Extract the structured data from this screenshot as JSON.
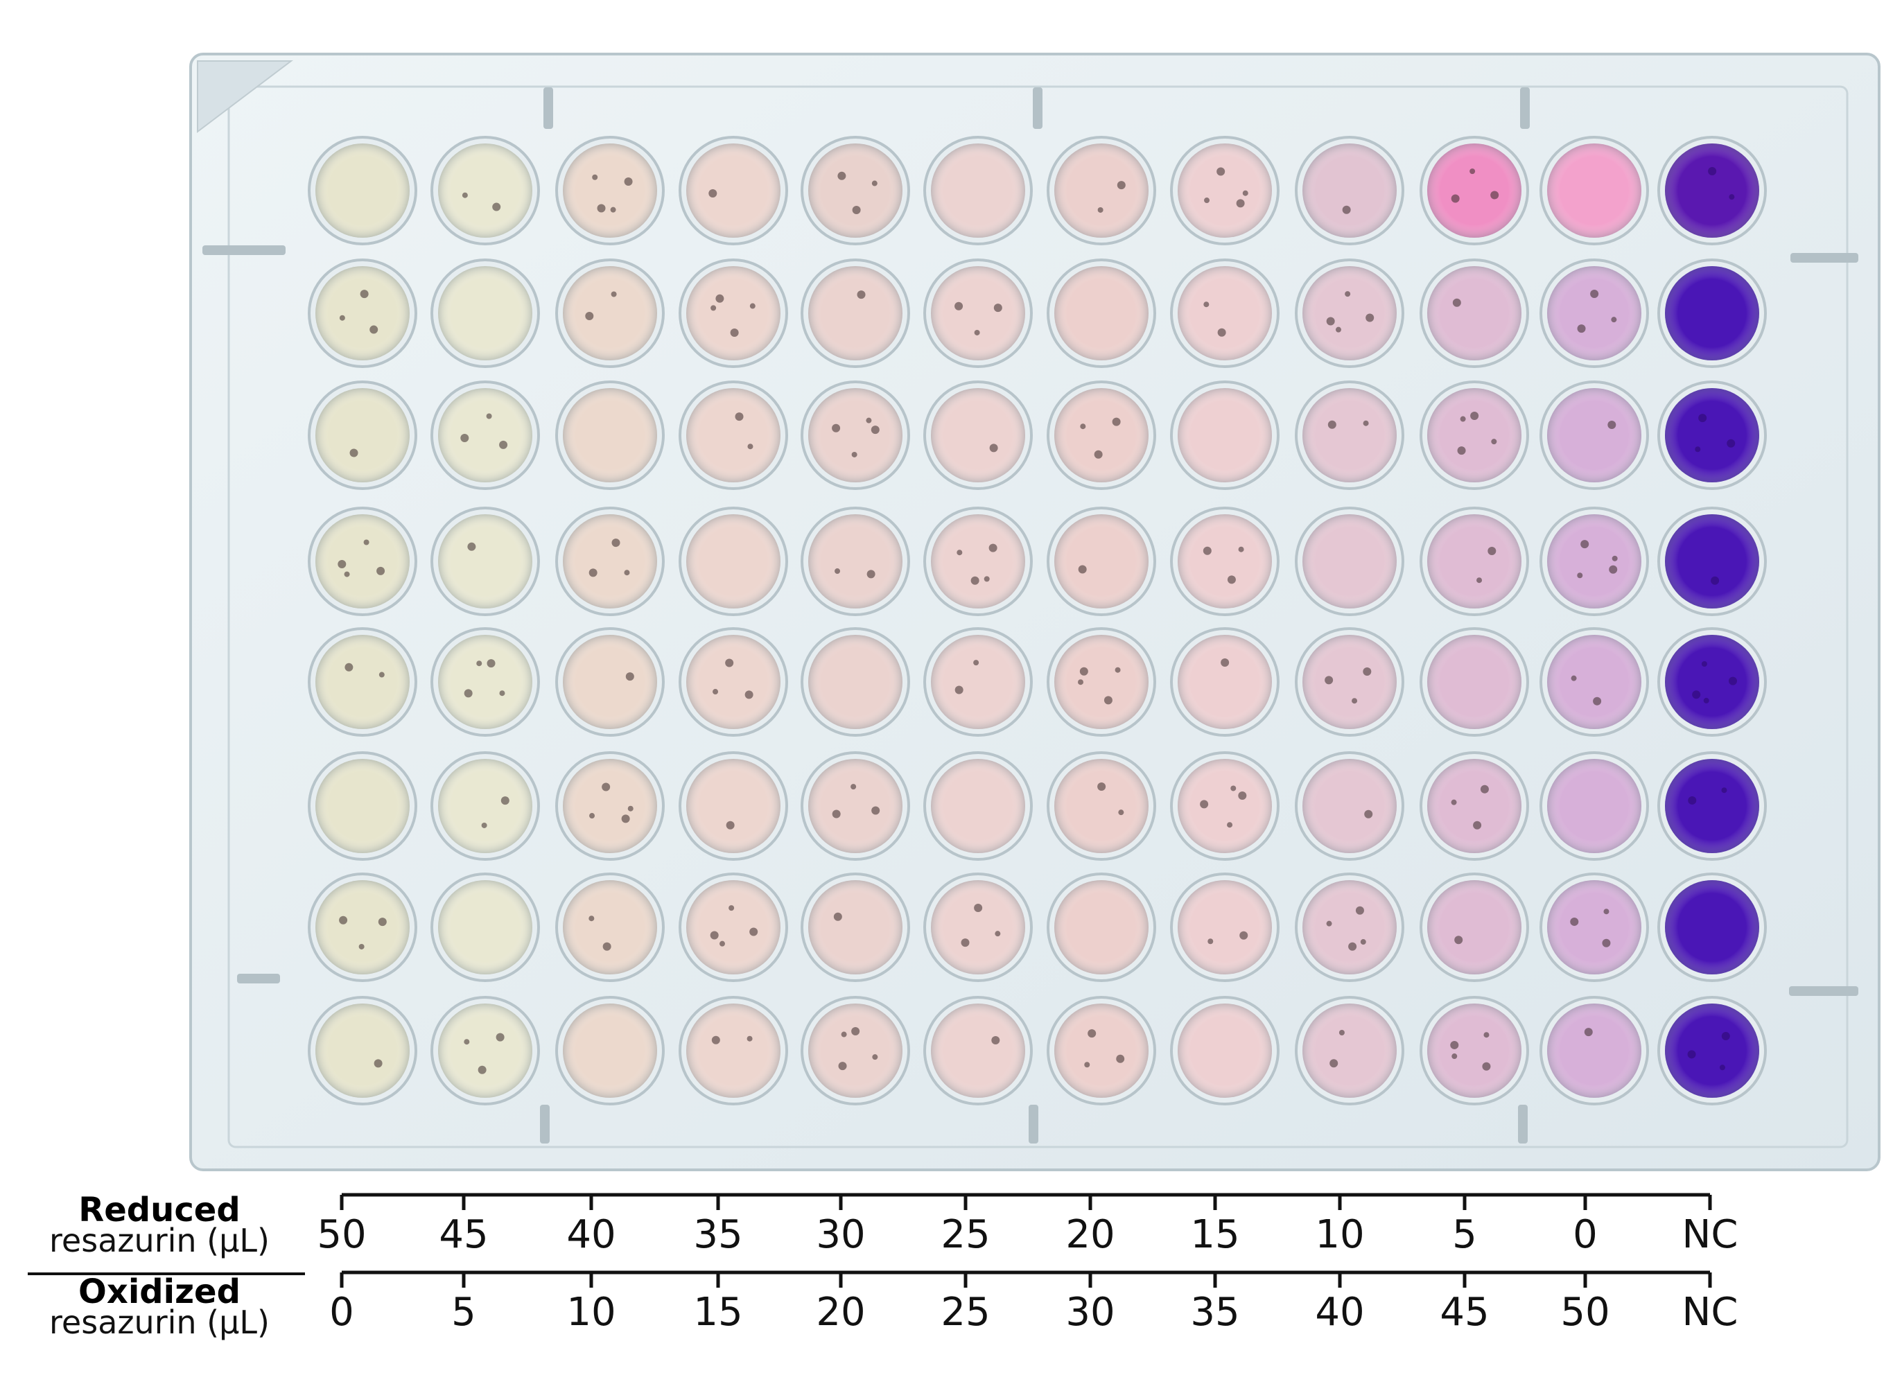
{
  "figure": {
    "row_labels": [
      {
        "bold": "Reduced",
        "normal": "resazurin (μL)"
      },
      {
        "bold": "Oxidized",
        "normal": "resazurin (μL)"
      }
    ],
    "reduced_values": [
      "50",
      "45",
      "40",
      "35",
      "30",
      "25",
      "20",
      "15",
      "10",
      "5",
      "0",
      "NC"
    ],
    "oxidized_values": [
      "0",
      "5",
      "10",
      "15",
      "20",
      "25",
      "30",
      "35",
      "40",
      "45",
      "50",
      "NC"
    ]
  },
  "plate": {
    "rows": 8,
    "columns": 12,
    "column_colors": [
      "#e7e5cd",
      "#e9e8d2",
      "#ecd9cd",
      "#edd6cf",
      "#ebd3cf",
      "#edd3d1",
      "#edd0cd",
      "#eed0d2",
      "#e5c7d3",
      "#e0bcd4",
      "#d7b0d9",
      "#4a16b6"
    ],
    "row1_column_colors": [
      "#e7e5cd",
      "#e9e8d2",
      "#ecd9cd",
      "#edd6cf",
      "#e9d2cd",
      "#ecd3d1",
      "#ecd0cd",
      "#eed0d2",
      "#e2c4d2",
      "#f08fc4",
      "#f3a2cc",
      "#5a18b0"
    ]
  }
}
